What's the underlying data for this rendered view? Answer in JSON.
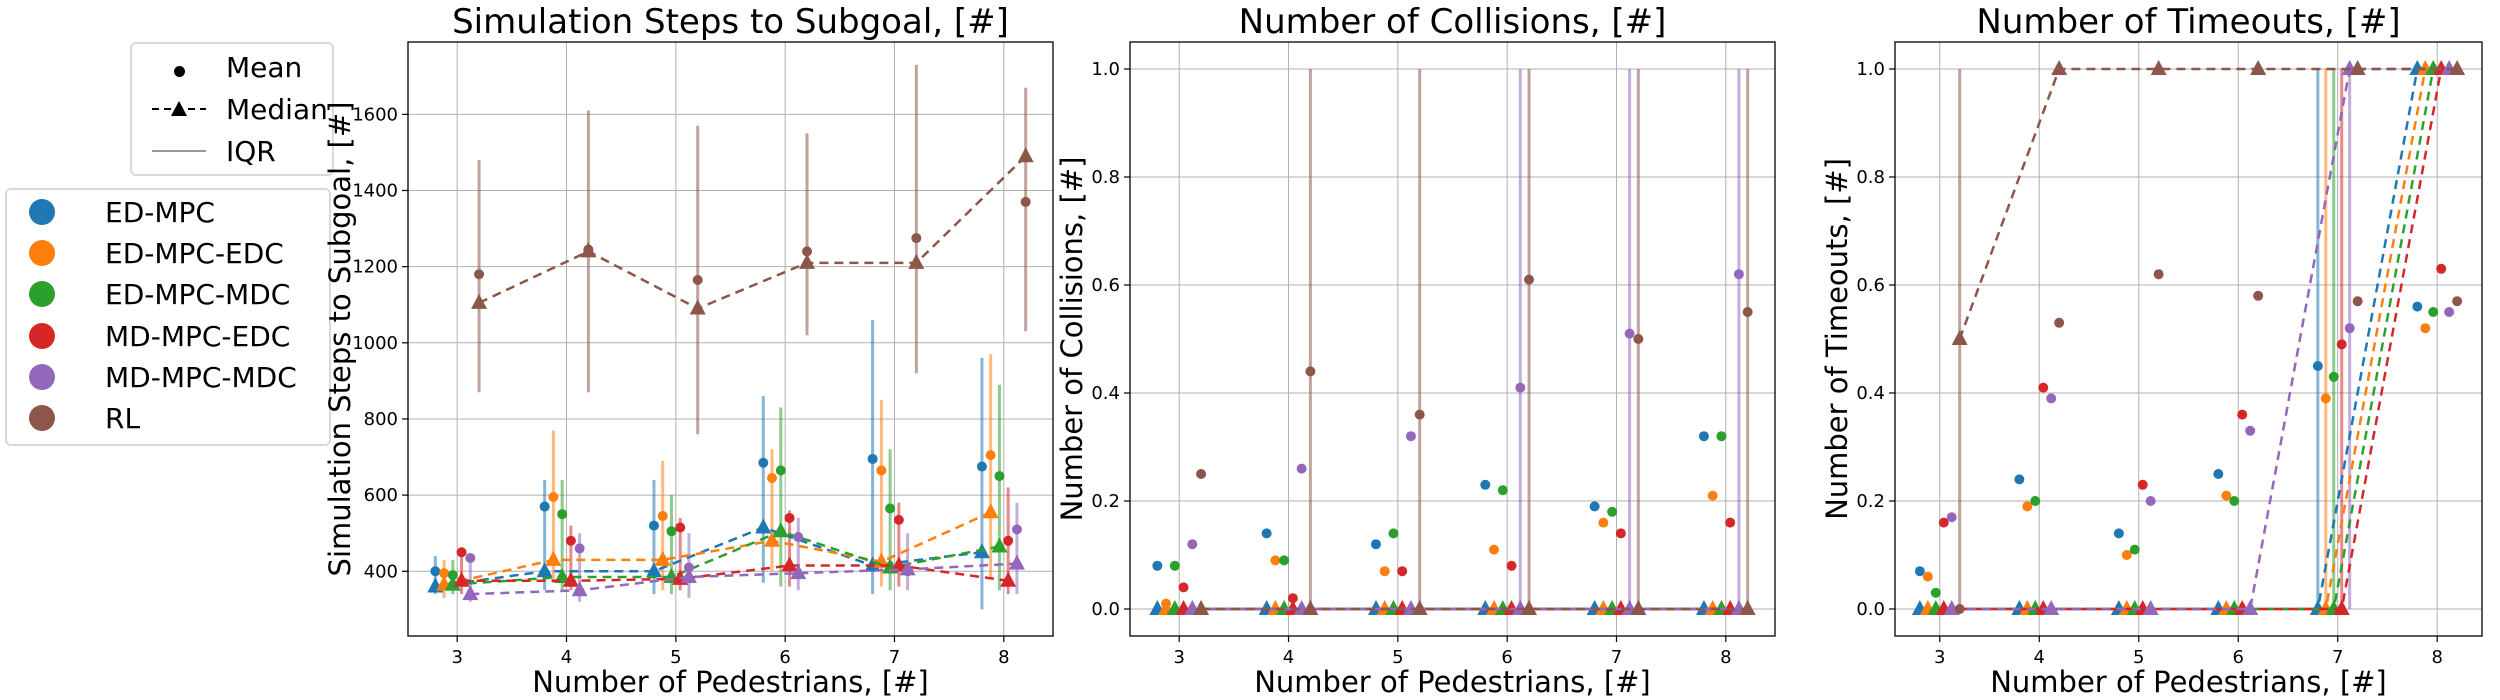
{
  "legend_markers": {
    "items": [
      {
        "label": "Mean",
        "style": "dot"
      },
      {
        "label": "Median",
        "style": "triangle-dashed"
      },
      {
        "label": "IQR",
        "style": "line"
      }
    ]
  },
  "legend_methods": {
    "items": [
      {
        "label": "ED-MPC",
        "color": "#1f77b4"
      },
      {
        "label": "ED-MPC-EDC",
        "color": "#ff7f0e"
      },
      {
        "label": "ED-MPC-MDC",
        "color": "#2ca02c"
      },
      {
        "label": "MD-MPC-EDC",
        "color": "#d62728"
      },
      {
        "label": "MD-MPC-MDC",
        "color": "#9467bd"
      },
      {
        "label": "RL",
        "color": "#8c564b"
      }
    ]
  },
  "chart_data": [
    {
      "type": "scatter",
      "title": "Simulation Steps to Subgoal, [#]",
      "xlabel": "Number of Pedestrians, [#]",
      "ylabel": "Simulation Steps to Subgoal, [#]",
      "x": [
        3,
        4,
        5,
        6,
        7,
        8
      ],
      "xlim": [
        2.55,
        8.45
      ],
      "ylim": [
        230,
        1790
      ],
      "yticks": [
        400,
        600,
        800,
        1000,
        1200,
        1400,
        1600
      ],
      "grid": true,
      "series": [
        {
          "name": "ED-MPC",
          "color": "#1f77b4",
          "mean": [
            400,
            570,
            520,
            685,
            695,
            675
          ],
          "median": [
            360,
            400,
            400,
            515,
            415,
            450
          ],
          "iqr": [
            [
              340,
              440
            ],
            [
              350,
              640
            ],
            [
              340,
              640
            ],
            [
              370,
              860
            ],
            [
              340,
              1060
            ],
            [
              300,
              960
            ]
          ]
        },
        {
          "name": "ED-MPC-EDC",
          "color": "#ff7f0e",
          "mean": [
            395,
            595,
            545,
            645,
            665,
            705
          ],
          "median": [
            365,
            430,
            430,
            480,
            425,
            555
          ],
          "iqr": [
            [
              330,
              430
            ],
            [
              370,
              770
            ],
            [
              350,
              690
            ],
            [
              400,
              720
            ],
            [
              360,
              850
            ],
            [
              380,
              970
            ]
          ]
        },
        {
          "name": "ED-MPC-MDC",
          "color": "#2ca02c",
          "mean": [
            390,
            550,
            505,
            665,
            565,
            650
          ],
          "median": [
            365,
            385,
            385,
            505,
            410,
            465
          ],
          "iqr": [
            [
              340,
              430
            ],
            [
              350,
              640
            ],
            [
              340,
              600
            ],
            [
              360,
              830
            ],
            [
              350,
              720
            ],
            [
              350,
              890
            ]
          ]
        },
        {
          "name": "MD-MPC-EDC",
          "color": "#d62728",
          "mean": [
            450,
            480,
            515,
            540,
            535,
            480
          ],
          "median": [
            375,
            375,
            380,
            415,
            415,
            375
          ],
          "iqr": [
            [
              340,
              460
            ],
            [
              350,
              520
            ],
            [
              350,
              540
            ],
            [
              360,
              560
            ],
            [
              360,
              580
            ],
            [
              340,
              620
            ]
          ]
        },
        {
          "name": "MD-MPC-MDC",
          "color": "#9467bd",
          "mean": [
            435,
            460,
            410,
            490,
            400,
            510
          ],
          "median": [
            340,
            350,
            385,
            395,
            405,
            420
          ],
          "iqr": [
            [
              320,
              440
            ],
            [
              320,
              500
            ],
            [
              330,
              500
            ],
            [
              350,
              540
            ],
            [
              350,
              500
            ],
            [
              340,
              580
            ]
          ]
        },
        {
          "name": "RL",
          "color": "#8c564b",
          "mean": [
            1180,
            1245,
            1165,
            1240,
            1275,
            1370
          ],
          "median": [
            1105,
            1240,
            1090,
            1210,
            1210,
            1490
          ],
          "iqr": [
            [
              870,
              1480
            ],
            [
              870,
              1610
            ],
            [
              760,
              1570
            ],
            [
              1020,
              1550
            ],
            [
              920,
              1730
            ],
            [
              1030,
              1670
            ]
          ]
        }
      ]
    },
    {
      "type": "scatter",
      "title": "Number of Collisions, [#]",
      "xlabel": "Number of Pedestrians, [#]",
      "ylabel": "Number of Collisions, [#]",
      "x": [
        3,
        4,
        5,
        6,
        7,
        8
      ],
      "xlim": [
        2.55,
        8.45
      ],
      "ylim": [
        -0.05,
        1.05
      ],
      "yticks": [
        0.0,
        0.2,
        0.4,
        0.6,
        0.8,
        1.0
      ],
      "grid": true,
      "series": [
        {
          "name": "ED-MPC",
          "color": "#1f77b4",
          "mean": [
            0.08,
            0.14,
            0.12,
            0.23,
            0.19,
            0.32
          ],
          "median": [
            0,
            0,
            0,
            0,
            0,
            0
          ],
          "iqr": [
            [
              0,
              0
            ],
            [
              0,
              0
            ],
            [
              0,
              0
            ],
            [
              0,
              0
            ],
            [
              0,
              0
            ],
            [
              0,
              0
            ]
          ]
        },
        {
          "name": "ED-MPC-EDC",
          "color": "#ff7f0e",
          "mean": [
            0.01,
            0.09,
            0.07,
            0.11,
            0.16,
            0.21
          ],
          "median": [
            0,
            0,
            0,
            0,
            0,
            0
          ],
          "iqr": [
            [
              0,
              0
            ],
            [
              0,
              0
            ],
            [
              0,
              0
            ],
            [
              0,
              0
            ],
            [
              0,
              0
            ],
            [
              0,
              0
            ]
          ]
        },
        {
          "name": "ED-MPC-MDC",
          "color": "#2ca02c",
          "mean": [
            0.08,
            0.09,
            0.14,
            0.22,
            0.18,
            0.32
          ],
          "median": [
            0,
            0,
            0,
            0,
            0,
            0
          ],
          "iqr": [
            [
              0,
              0
            ],
            [
              0,
              0
            ],
            [
              0,
              0
            ],
            [
              0,
              0
            ],
            [
              0,
              0
            ],
            [
              0,
              0
            ]
          ]
        },
        {
          "name": "MD-MPC-EDC",
          "color": "#d62728",
          "mean": [
            0.04,
            0.02,
            0.07,
            0.08,
            0.14,
            0.16
          ],
          "median": [
            0,
            0,
            0,
            0,
            0,
            0
          ],
          "iqr": [
            [
              0,
              0
            ],
            [
              0,
              0
            ],
            [
              0,
              0
            ],
            [
              0,
              0
            ],
            [
              0,
              0
            ],
            [
              0,
              0
            ]
          ]
        },
        {
          "name": "MD-MPC-MDC",
          "color": "#9467bd",
          "mean": [
            0.12,
            0.26,
            0.32,
            0.41,
            0.51,
            0.62
          ],
          "median": [
            0,
            0,
            0,
            0,
            0,
            0
          ],
          "iqr": [
            [
              0,
              0
            ],
            [
              0,
              0
            ],
            [
              0,
              0
            ],
            [
              0,
              1
            ],
            [
              0,
              1
            ],
            [
              0,
              1
            ]
          ]
        },
        {
          "name": "RL",
          "color": "#8c564b",
          "mean": [
            0.25,
            0.44,
            0.36,
            0.61,
            0.5,
            0.55
          ],
          "median": [
            0,
            0,
            0,
            0,
            0,
            0
          ],
          "iqr": [
            [
              0,
              0
            ],
            [
              0,
              1
            ],
            [
              0,
              1
            ],
            [
              0,
              1
            ],
            [
              0,
              1
            ],
            [
              0,
              1
            ]
          ]
        }
      ]
    },
    {
      "type": "scatter",
      "title": "Number of Timeouts, [#]",
      "xlabel": "Number of Pedestrians, [#]",
      "ylabel": "Number of Timeouts, [#]",
      "x": [
        3,
        4,
        5,
        6,
        7,
        8
      ],
      "xlim": [
        2.55,
        8.45
      ],
      "ylim": [
        -0.05,
        1.05
      ],
      "yticks": [
        0.0,
        0.2,
        0.4,
        0.6,
        0.8,
        1.0
      ],
      "grid": true,
      "series": [
        {
          "name": "ED-MPC",
          "color": "#1f77b4",
          "mean": [
            0.07,
            0.24,
            0.14,
            0.25,
            0.45,
            0.56
          ],
          "median": [
            0,
            0,
            0,
            0,
            0,
            1
          ],
          "iqr": [
            [
              0,
              0
            ],
            [
              0,
              0
            ],
            [
              0,
              0
            ],
            [
              0,
              0
            ],
            [
              0,
              1
            ],
            [
              1,
              1
            ]
          ]
        },
        {
          "name": "ED-MPC-EDC",
          "color": "#ff7f0e",
          "mean": [
            0.06,
            0.19,
            0.1,
            0.21,
            0.39,
            0.52
          ],
          "median": [
            0,
            0,
            0,
            0,
            0,
            1
          ],
          "iqr": [
            [
              0,
              0
            ],
            [
              0,
              0
            ],
            [
              0,
              0
            ],
            [
              0,
              0
            ],
            [
              0,
              1
            ],
            [
              1,
              1
            ]
          ]
        },
        {
          "name": "ED-MPC-MDC",
          "color": "#2ca02c",
          "mean": [
            0.03,
            0.2,
            0.11,
            0.2,
            0.43,
            0.55
          ],
          "median": [
            0,
            0,
            0,
            0,
            0,
            1
          ],
          "iqr": [
            [
              0,
              0
            ],
            [
              0,
              0
            ],
            [
              0,
              0
            ],
            [
              0,
              0
            ],
            [
              0,
              1
            ],
            [
              1,
              1
            ]
          ]
        },
        {
          "name": "MD-MPC-EDC",
          "color": "#d62728",
          "mean": [
            0.16,
            0.41,
            0.23,
            0.36,
            0.49,
            0.63
          ],
          "median": [
            0,
            0,
            0,
            0,
            0,
            1
          ],
          "iqr": [
            [
              0,
              0
            ],
            [
              0,
              0
            ],
            [
              0,
              0
            ],
            [
              0,
              0
            ],
            [
              0,
              1
            ],
            [
              1,
              1
            ]
          ]
        },
        {
          "name": "MD-MPC-MDC",
          "color": "#9467bd",
          "mean": [
            0.17,
            0.39,
            0.2,
            0.33,
            0.52,
            0.55
          ],
          "median": [
            0,
            0,
            0,
            0,
            1,
            1
          ],
          "iqr": [
            [
              0,
              0
            ],
            [
              0,
              0
            ],
            [
              0,
              0
            ],
            [
              0,
              0
            ],
            [
              0,
              1
            ],
            [
              1,
              1
            ]
          ]
        },
        {
          "name": "RL",
          "color": "#8c564b",
          "mean": [
            0.0,
            0.53,
            0.62,
            0.58,
            0.57,
            0.57
          ],
          "median": [
            0.5,
            1,
            1,
            1,
            1,
            1
          ],
          "iqr": [
            [
              0,
              1
            ],
            [
              1,
              1
            ],
            [
              1,
              1
            ],
            [
              1,
              1
            ],
            [
              1,
              1
            ],
            [
              1,
              1
            ]
          ]
        }
      ]
    }
  ]
}
